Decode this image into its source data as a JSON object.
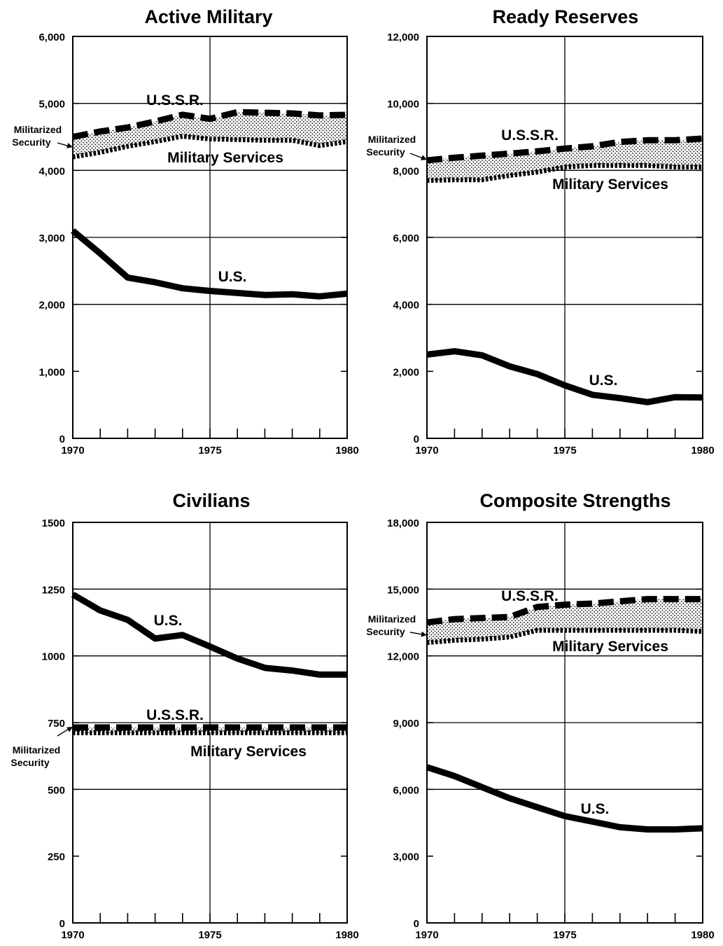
{
  "chart_data": [
    {
      "type": "line",
      "title": "Active Military",
      "x": [
        1970,
        1971,
        1972,
        1973,
        1974,
        1975,
        1976,
        1977,
        1978,
        1979,
        1980
      ],
      "x_tick_labels": [
        "1970",
        "1975",
        "1980"
      ],
      "y_tick_labels": [
        "0",
        "1,000",
        "2,000",
        "3,000",
        "4,000",
        "5,000",
        "6,000"
      ],
      "ylim": [
        0,
        6000
      ],
      "grid": "y every 1,000 from 2,000; vertical line at 1975",
      "series": [
        {
          "name": "U.S.S.R.",
          "style": "dashed",
          "values": [
            4500,
            4580,
            4640,
            4730,
            4830,
            4770,
            4870,
            4860,
            4850,
            4820,
            4830
          ]
        },
        {
          "name": "Military Services",
          "style": "dotted",
          "values": [
            4200,
            4270,
            4360,
            4430,
            4510,
            4470,
            4460,
            4450,
            4450,
            4370,
            4430
          ]
        },
        {
          "name": "U.S.",
          "style": "solid",
          "values": [
            3100,
            2760,
            2400,
            2330,
            2240,
            2200,
            2170,
            2140,
            2150,
            2120,
            2160
          ]
        }
      ],
      "annotations": {
        "militarized_security_line1": "Militarized",
        "militarized_security_line2": "Security"
      }
    },
    {
      "type": "line",
      "title": "Ready Reserves",
      "x": [
        1970,
        1971,
        1972,
        1973,
        1974,
        1975,
        1976,
        1977,
        1978,
        1979,
        1980
      ],
      "x_tick_labels": [
        "1970",
        "1975",
        "1980"
      ],
      "y_tick_labels": [
        "0",
        "2,000",
        "4,000",
        "6,000",
        "8,000",
        "10,000",
        "12,000"
      ],
      "ylim": [
        0,
        12000
      ],
      "grid": "y every 2,000 from 4,000; vertical line at 1975",
      "series": [
        {
          "name": "U.S.S.R.",
          "style": "dashed",
          "values": [
            8300,
            8380,
            8440,
            8500,
            8570,
            8650,
            8720,
            8850,
            8900,
            8900,
            8950
          ]
        },
        {
          "name": "Military Services",
          "style": "dotted",
          "values": [
            7700,
            7720,
            7720,
            7850,
            7950,
            8100,
            8150,
            8150,
            8150,
            8100,
            8100
          ]
        },
        {
          "name": "U.S.",
          "style": "solid",
          "values": [
            2500,
            2600,
            2480,
            2150,
            1920,
            1580,
            1300,
            1200,
            1080,
            1230,
            1220
          ]
        }
      ],
      "annotations": {
        "militarized_security_line1": "Militarized",
        "militarized_security_line2": "Security"
      }
    },
    {
      "type": "line",
      "title": "Civilians",
      "x": [
        1970,
        1971,
        1972,
        1973,
        1974,
        1975,
        1976,
        1977,
        1978,
        1979,
        1980
      ],
      "x_tick_labels": [
        "1970",
        "1975",
        "1980"
      ],
      "y_tick_labels": [
        "0",
        "250",
        "500",
        "750",
        "1000",
        "1250",
        "1500"
      ],
      "ylim": [
        0,
        1500
      ],
      "grid": "y every 250 from 500; vertical line at 1975",
      "series": [
        {
          "name": "U.S.S.R.",
          "style": "dashed",
          "values": [
            732,
            732,
            732,
            732,
            732,
            732,
            732,
            732,
            732,
            732,
            732
          ]
        },
        {
          "name": "Military Services",
          "style": "dotted",
          "values": [
            712,
            712,
            712,
            712,
            712,
            712,
            712,
            712,
            712,
            712,
            712
          ]
        },
        {
          "name": "U.S.",
          "style": "solid",
          "values": [
            1230,
            1170,
            1135,
            1065,
            1078,
            1035,
            990,
            955,
            945,
            930,
            930
          ]
        }
      ],
      "annotations": {
        "militarized_security_line1": "Militarized",
        "militarized_security_line2": "Security"
      }
    },
    {
      "type": "line",
      "title": "Composite Strengths",
      "x": [
        1970,
        1971,
        1972,
        1973,
        1974,
        1975,
        1976,
        1977,
        1978,
        1979,
        1980
      ],
      "x_tick_labels": [
        "1970",
        "1975",
        "1980"
      ],
      "y_tick_labels": [
        "0",
        "3,000",
        "6,000",
        "9,000",
        "12,000",
        "15,000",
        "18,000"
      ],
      "ylim": [
        0,
        18000
      ],
      "grid": "y every 3,000 from 6,000; vertical line at 1975",
      "series": [
        {
          "name": "U.S.S.R.",
          "style": "dashed",
          "values": [
            13500,
            13650,
            13700,
            13750,
            14200,
            14300,
            14350,
            14450,
            14550,
            14550,
            14550
          ]
        },
        {
          "name": "Military Services",
          "style": "dotted",
          "values": [
            12600,
            12700,
            12750,
            12850,
            13150,
            13150,
            13150,
            13150,
            13150,
            13150,
            13100
          ]
        },
        {
          "name": "U.S.",
          "style": "solid",
          "values": [
            7000,
            6600,
            6100,
            5600,
            5200,
            4800,
            4550,
            4300,
            4200,
            4200,
            4250
          ]
        }
      ],
      "annotations": {
        "militarized_security_line1": "Militarized",
        "militarized_security_line2": "Security"
      }
    }
  ]
}
